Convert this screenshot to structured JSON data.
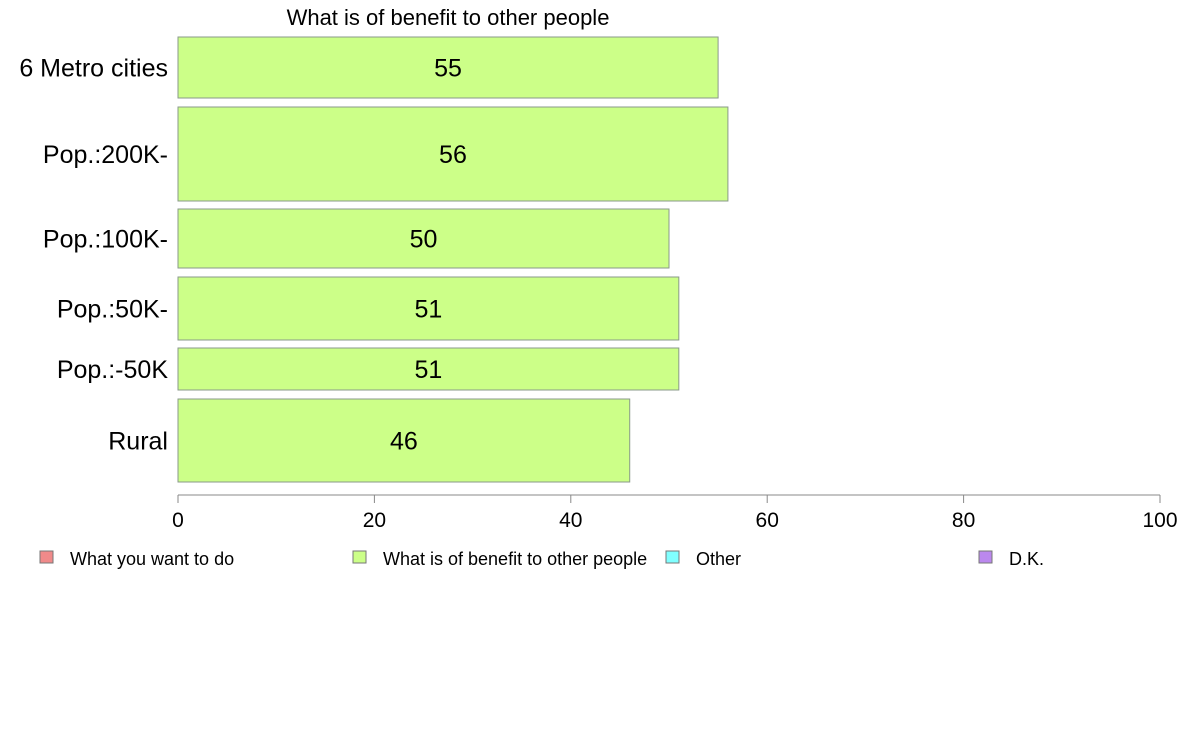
{
  "chart_data": {
    "type": "bar",
    "orientation": "horizontal",
    "title": "What is of benefit to other people",
    "categories": [
      "6 Metro cities",
      "Pop.:200K-",
      "Pop.:100K-",
      "Pop.:50K-",
      "Pop.:-50K",
      "Rural"
    ],
    "series": [
      {
        "name": "What is of benefit to other people",
        "values": [
          55,
          56,
          50,
          51,
          51,
          46
        ],
        "color": "#ccff88"
      }
    ],
    "data_labels": [
      "55",
      "56",
      "50",
      "51",
      "51",
      "46"
    ],
    "xlim": [
      0,
      100
    ],
    "x_ticks": [
      0,
      20,
      40,
      60,
      80,
      100
    ],
    "grid": false,
    "legend_position": "bottom",
    "legend": [
      {
        "label": "What you want to do",
        "color": "#f08a8a"
      },
      {
        "label": "What is of benefit to other people",
        "color": "#ccff88"
      },
      {
        "label": "Other",
        "color": "#80ffff"
      },
      {
        "label": "D.K.",
        "color": "#bb88ee"
      }
    ]
  }
}
